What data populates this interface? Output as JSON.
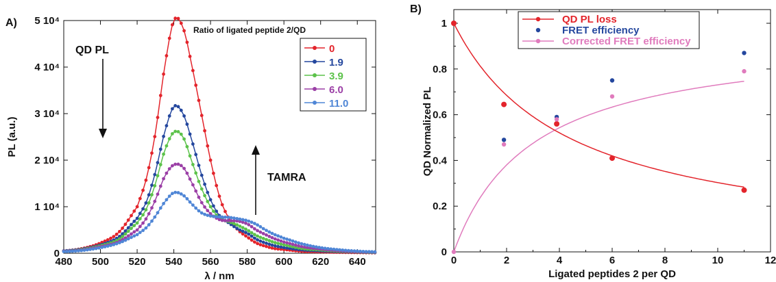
{
  "colors": {
    "red": "#e3242b",
    "blue": "#24479e",
    "green": "#5cc24a",
    "purple": "#9b3fa6",
    "lightblue": "#4f86d6",
    "pink": "#e07bbd"
  },
  "chart_data": [
    {
      "panel": "A)",
      "type": "line",
      "xlabel": "λ / nm",
      "ylabel": "PL (a.u.)",
      "xlim": [
        480,
        650
      ],
      "ylim": [
        0,
        50000
      ],
      "xticks": [
        480,
        500,
        520,
        540,
        560,
        580,
        600,
        620,
        640
      ],
      "yticks": [
        {
          "value": 0,
          "label": "0"
        },
        {
          "value": 10000,
          "label": "1 10⁴"
        },
        {
          "value": 20000,
          "label": "2 10⁴"
        },
        {
          "value": 30000,
          "label": "3 10⁴"
        },
        {
          "value": 40000,
          "label": "4 10⁴"
        },
        {
          "value": 50000,
          "label": "5 10⁴"
        }
      ],
      "legend_title": "Ratio of ligated peptide 2/QD",
      "legend_position": "top-right",
      "annotations": [
        "QD PL",
        "TAMRA"
      ],
      "x": [
        475,
        480,
        490,
        500,
        510,
        520,
        525,
        530,
        535,
        540,
        545,
        550,
        555,
        560,
        565,
        570,
        575,
        580,
        585,
        590,
        595,
        600,
        610,
        620,
        630,
        640,
        650
      ],
      "series": [
        {
          "name": "0",
          "values": [
            400,
            500,
            1000,
            2200,
            4500,
            10000,
            16000,
            26000,
            40000,
            50000,
            48500,
            40000,
            30000,
            20000,
            12000,
            7500,
            5000,
            3500,
            2200,
            1500,
            1000,
            800,
            400,
            300,
            200,
            150,
            100
          ]
        },
        {
          "name": "1.9",
          "values": [
            400,
            500,
            900,
            1800,
            3500,
            7500,
            11000,
            17500,
            26000,
            31500,
            30000,
            24000,
            17000,
            11500,
            8000,
            6500,
            5200,
            4300,
            3000,
            2200,
            1600,
            1200,
            700,
            500,
            350,
            250,
            150
          ]
        },
        {
          "name": "3.9",
          "values": [
            300,
            400,
            800,
            1600,
            3000,
            6500,
            9500,
            15000,
            22000,
            26000,
            25000,
            19500,
            14000,
            10000,
            7500,
            6800,
            6000,
            5000,
            3800,
            3000,
            2300,
            1800,
            1000,
            700,
            450,
            300,
            200
          ]
        },
        {
          "name": "6.0",
          "values": [
            300,
            400,
            700,
            1400,
            2500,
            5000,
            7500,
            11500,
            16500,
            19000,
            18500,
            15000,
            11000,
            8500,
            7200,
            7000,
            6900,
            6300,
            5000,
            4000,
            3100,
            2400,
            1400,
            900,
            550,
            350,
            250
          ]
        },
        {
          "name": "11.0",
          "values": [
            300,
            350,
            600,
            1200,
            2200,
            4000,
            5500,
            8000,
            11000,
            13000,
            12500,
            10500,
            8700,
            8000,
            7800,
            7700,
            7400,
            7000,
            6200,
            5000,
            4000,
            3200,
            2000,
            1200,
            750,
            450,
            300
          ]
        }
      ]
    },
    {
      "panel": "B)",
      "type": "scatter",
      "xlabel": "Ligated peptides 2 per QD",
      "ylabel": "QD Normalized PL",
      "xlim": [
        0,
        12
      ],
      "ylim": [
        0,
        1
      ],
      "xticks": [
        0,
        2,
        4,
        6,
        8,
        10,
        12
      ],
      "yticks": [
        0,
        0.2,
        0.4,
        0.6,
        0.8,
        1
      ],
      "legend_position": "top-center",
      "series": [
        {
          "name": "QD PL loss",
          "x": [
            0,
            1.9,
            3.9,
            6.0,
            11.0
          ],
          "values": [
            1.0,
            0.645,
            0.56,
            0.41,
            0.27
          ]
        },
        {
          "name": "FRET efficiency",
          "x": [
            1.9,
            3.9,
            6.0,
            11.0
          ],
          "values": [
            0.49,
            0.59,
            0.75,
            0.87
          ]
        },
        {
          "name": "Corrected FRET efficiency",
          "x": [
            0,
            1.9,
            3.9,
            6.0,
            11.0
          ],
          "values": [
            0,
            0.47,
            0.58,
            0.68,
            0.79
          ]
        }
      ]
    }
  ]
}
